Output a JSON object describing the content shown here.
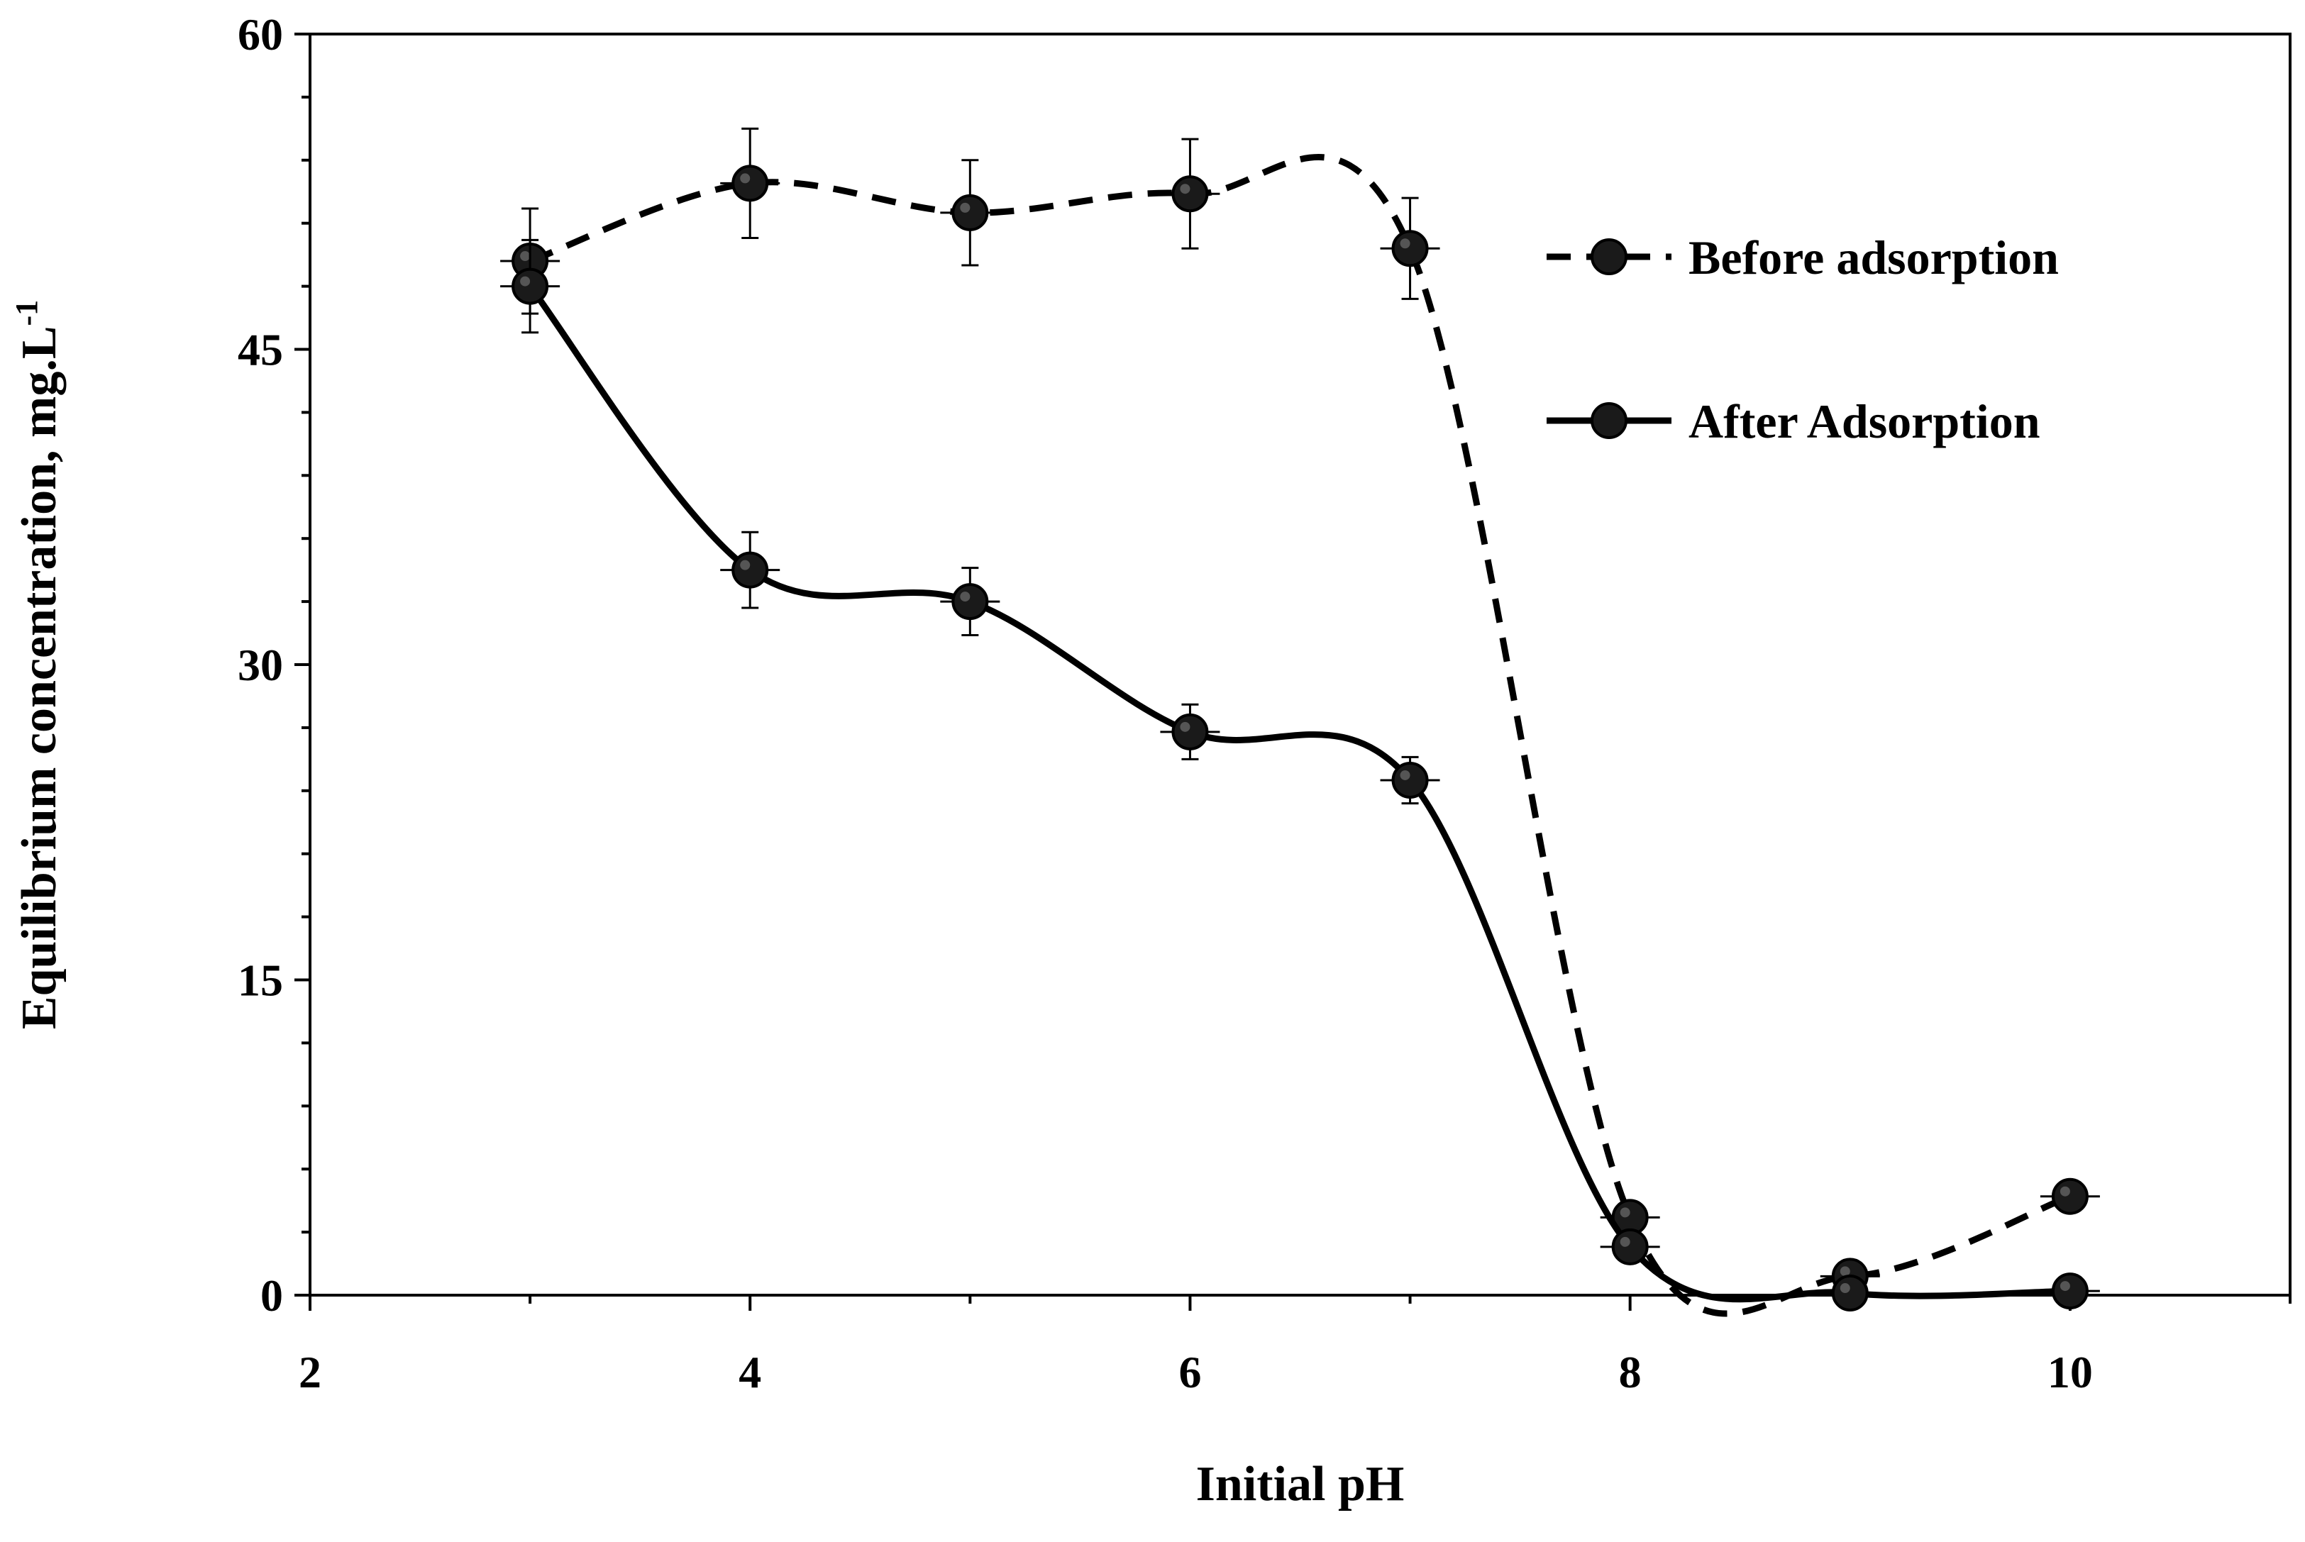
{
  "chart_data": {
    "type": "line",
    "title": "",
    "xlabel": "Initial pH",
    "ylabel": "Equilibrium concentration, mg.L",
    "ylabel_superscript": "-1",
    "xlim": [
      2,
      11
    ],
    "ylim": [
      0,
      60
    ],
    "x_ticks": [
      2,
      4,
      6,
      8,
      10
    ],
    "y_ticks": [
      0,
      15,
      30,
      45,
      60
    ],
    "grid": false,
    "legend_position": "top-right",
    "series": [
      {
        "name": "Before adsorption",
        "style": "dashed",
        "marker": "circle",
        "x": [
          3,
          4,
          5,
          6,
          7,
          8,
          9,
          10
        ],
        "y": [
          49.2,
          52.9,
          51.5,
          52.4,
          49.8,
          3.7,
          0.9,
          4.7
        ],
        "y_error": [
          2.5,
          2.6,
          2.5,
          2.6,
          2.4,
          0.6,
          0.4,
          0.4
        ]
      },
      {
        "name": "After Adsorption",
        "style": "solid",
        "marker": "circle",
        "x": [
          3,
          4,
          5,
          6,
          7,
          8,
          9,
          10
        ],
        "y": [
          48.0,
          34.5,
          33.0,
          26.8,
          24.5,
          2.3,
          0.1,
          0.2
        ],
        "y_error": [
          2.2,
          1.8,
          1.6,
          1.3,
          1.1,
          0.5,
          0.3,
          0.3
        ]
      }
    ]
  }
}
